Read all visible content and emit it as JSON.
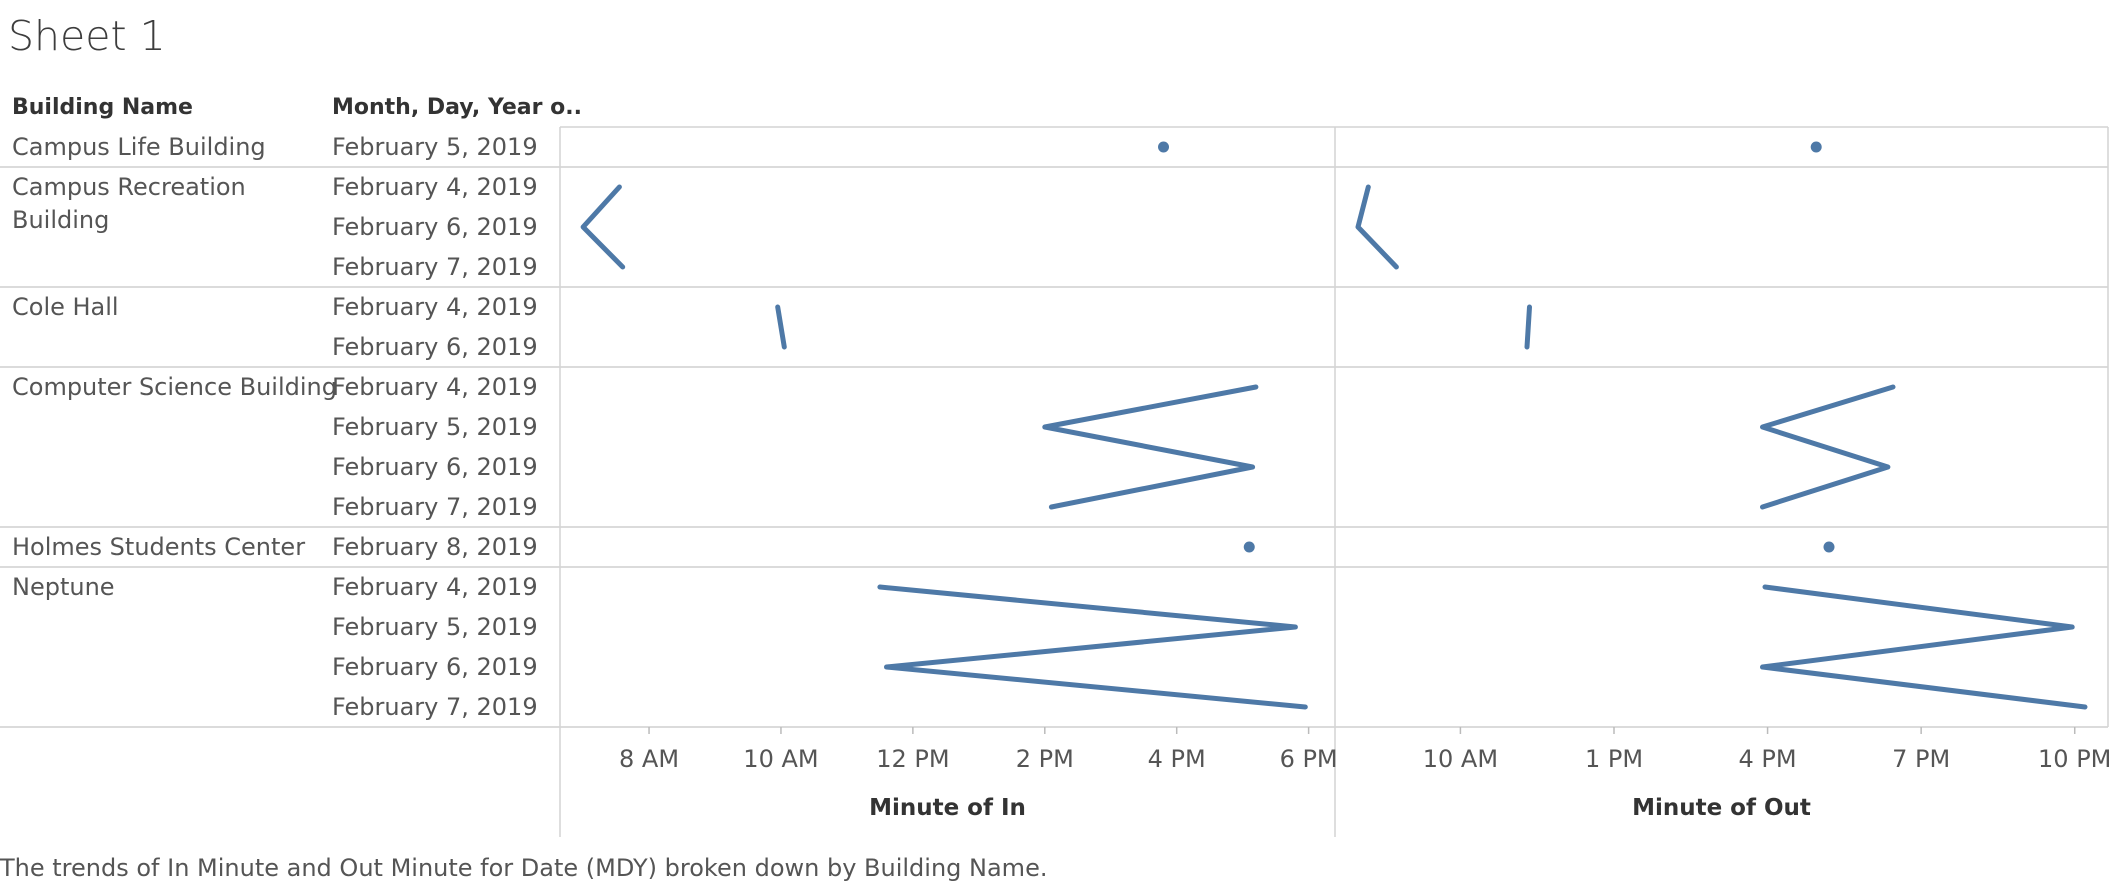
{
  "sheet": {
    "title": "Sheet 1",
    "headers": [
      "Building Name",
      "Month, Day, Year o.."
    ],
    "caption": "The trends of In Minute and Out Minute for Date (MDY) broken down by Building Name."
  },
  "chart_data": {
    "type": "line",
    "mark_color": "#4e79a7",
    "panes": [
      {
        "key": "in",
        "xlabel": "Minute of In",
        "ticks": [
          {
            "label": "8 AM",
            "h": 8
          },
          {
            "label": "10 AM",
            "h": 10
          },
          {
            "label": "12 PM",
            "h": 12
          },
          {
            "label": "2 PM",
            "h": 14
          },
          {
            "label": "4 PM",
            "h": 16
          },
          {
            "label": "6 PM",
            "h": 18
          }
        ],
        "xlim": [
          6.65,
          18.4
        ]
      },
      {
        "key": "out",
        "xlabel": "Minute of Out",
        "ticks": [
          {
            "label": "10 AM",
            "h": 10
          },
          {
            "label": "1 PM",
            "h": 13
          },
          {
            "label": "4 PM",
            "h": 16
          },
          {
            "label": "7 PM",
            "h": 19
          },
          {
            "label": "10 PM",
            "h": 22
          }
        ],
        "xlim": [
          7.55,
          22.65
        ]
      }
    ],
    "groups": [
      {
        "building": [
          "Campus Life Building"
        ],
        "rows": [
          {
            "date": "February 5, 2019",
            "in": 15.8,
            "out": 16.95
          }
        ]
      },
      {
        "building": [
          "Campus Recreation",
          "Building"
        ],
        "rows": [
          {
            "date": "February 4, 2019",
            "in": 7.55,
            "out": 8.2
          },
          {
            "date": "February 6, 2019",
            "in": 7.0,
            "out": 8.0
          },
          {
            "date": "February 7, 2019",
            "in": 7.6,
            "out": 8.75
          }
        ]
      },
      {
        "building": [
          "Cole Hall"
        ],
        "rows": [
          {
            "date": "February 4, 2019",
            "in": 9.95,
            "out": 11.35
          },
          {
            "date": "February 6, 2019",
            "in": 10.05,
            "out": 11.3
          }
        ]
      },
      {
        "building": [
          "Computer Science Building"
        ],
        "rows": [
          {
            "date": "February 4, 2019",
            "in": 17.2,
            "out": 18.45
          },
          {
            "date": "February 5, 2019",
            "in": 14.0,
            "out": 15.9
          },
          {
            "date": "February 6, 2019",
            "in": 17.15,
            "out": 18.35
          },
          {
            "date": "February 7, 2019",
            "in": 14.1,
            "out": 15.9
          }
        ]
      },
      {
        "building": [
          "Holmes Students Center"
        ],
        "rows": [
          {
            "date": "February 8, 2019",
            "in": 17.1,
            "out": 17.2
          }
        ]
      },
      {
        "building": [
          "Neptune"
        ],
        "rows": [
          {
            "date": "February 4, 2019",
            "in": 11.5,
            "out": 15.95
          },
          {
            "date": "February 5, 2019",
            "in": 17.8,
            "out": 21.95
          },
          {
            "date": "February 6, 2019",
            "in": 11.6,
            "out": 15.9
          },
          {
            "date": "February 7, 2019",
            "in": 17.95,
            "out": 22.2
          }
        ]
      }
    ]
  }
}
